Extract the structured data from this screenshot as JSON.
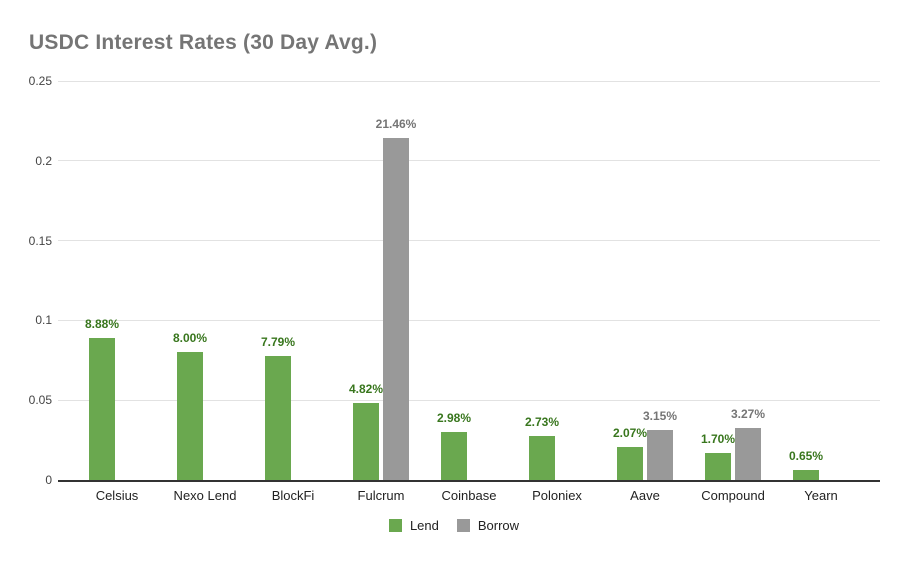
{
  "title": "USDC Interest Rates (30 Day Avg.)",
  "colors": {
    "lend_bar": "#6aa84f",
    "borrow_bar": "#999999",
    "lend_label": "#38761d",
    "borrow_label": "#757575",
    "title_text": "#757575",
    "axis_text": "#222222",
    "gridline": "#e2e2e2",
    "baseline": "#333333",
    "background": "#ffffff"
  },
  "chart_data": {
    "type": "bar",
    "title": "USDC Interest Rates (30 Day Avg.)",
    "xlabel": "",
    "ylabel": "",
    "categories": [
      "Celsius",
      "Nexo Lend",
      "BlockFi",
      "Fulcrum",
      "Coinbase",
      "Poloniex",
      "Aave",
      "Compound",
      "Yearn"
    ],
    "series": [
      {
        "name": "Lend",
        "color": "#6aa84f",
        "label_color": "#38761d",
        "values": [
          0.0888,
          0.08,
          0.0779,
          0.0482,
          0.0298,
          0.0273,
          0.0207,
          0.017,
          0.0065
        ],
        "labels": [
          "8.88%",
          "8.00%",
          "7.79%",
          "4.82%",
          "2.98%",
          "2.73%",
          "2.07%",
          "1.70%",
          "0.65%"
        ]
      },
      {
        "name": "Borrow",
        "color": "#999999",
        "label_color": "#757575",
        "values": [
          null,
          null,
          null,
          0.2146,
          null,
          null,
          0.0315,
          0.0327,
          null
        ],
        "labels": [
          null,
          null,
          null,
          "21.46%",
          null,
          null,
          "3.15%",
          "3.27%",
          null
        ]
      }
    ],
    "ylim": [
      0,
      0.25
    ],
    "yticks": [
      "0",
      "0.05",
      "0.1",
      "0.15",
      "0.2",
      "0.25"
    ],
    "ytick_values": [
      0,
      0.05,
      0.1,
      0.15,
      0.2,
      0.25
    ],
    "grid": true,
    "legend_position": "bottom",
    "legend_entries": [
      {
        "label": "Lend",
        "color": "#6aa84f"
      },
      {
        "label": "Borrow",
        "color": "#999999"
      }
    ]
  }
}
